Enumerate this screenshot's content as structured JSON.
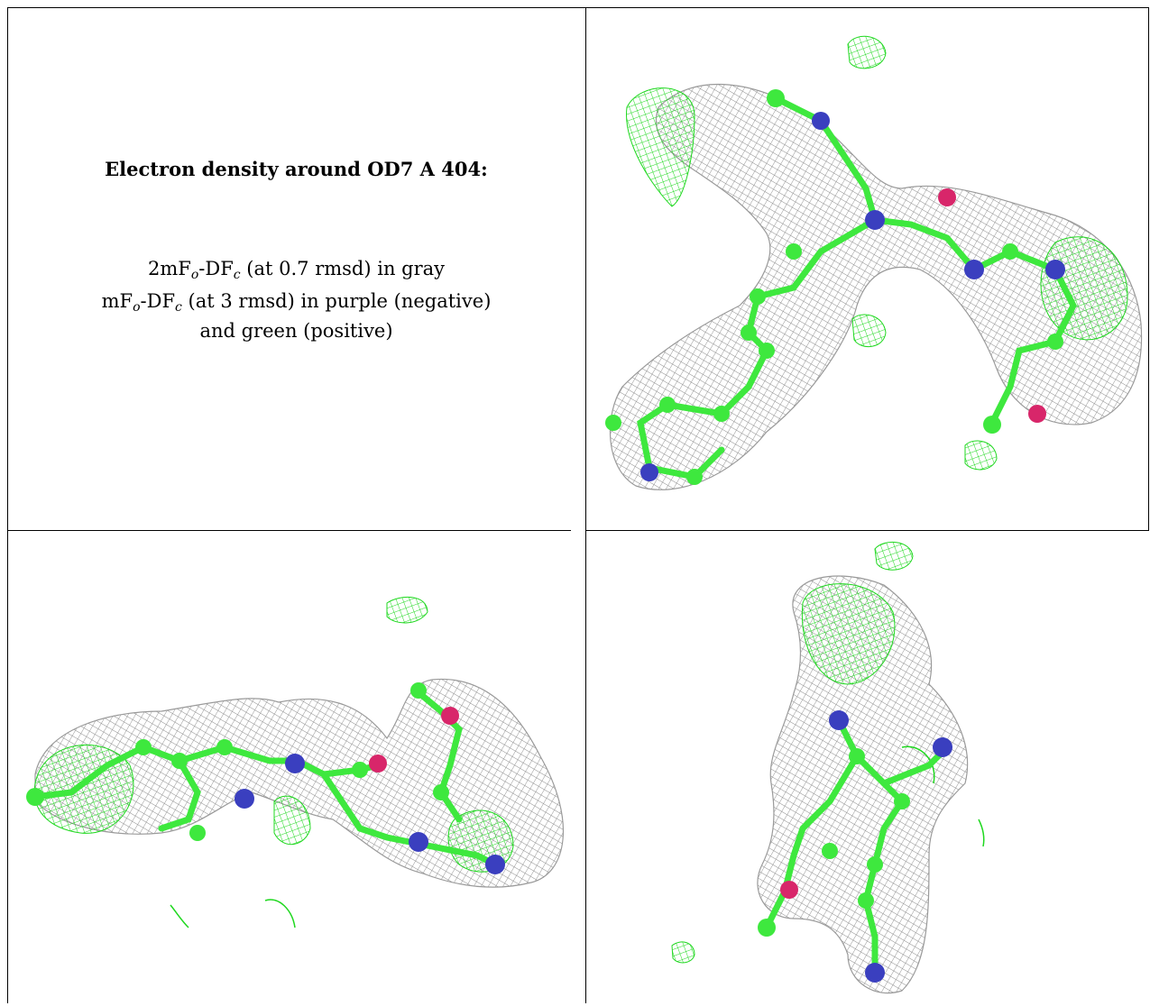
{
  "caption": {
    "title": "Electron density around OD7 A 404:",
    "line1": {
      "pre": "2mF",
      "sub1": "o",
      "mid": "-DF",
      "sub2": "c",
      "post": " (at 0.7 rmsd) in gray"
    },
    "line2": {
      "pre": "mF",
      "sub1": "o",
      "mid": "-DF",
      "sub2": "c",
      "post": " (at 3 rmsd) in purple (negative)"
    },
    "line3": "and green (positive)"
  },
  "colors": {
    "carbon": "#3ee83e",
    "nitrogen": "#3a3fbf",
    "oxygen": "#d8266a",
    "density_gray": "#8a8a8a",
    "density_positive": "#1fd81f"
  },
  "panels": [
    {
      "view": "top-right"
    },
    {
      "view": "bottom-left"
    },
    {
      "view": "bottom-right"
    }
  ]
}
